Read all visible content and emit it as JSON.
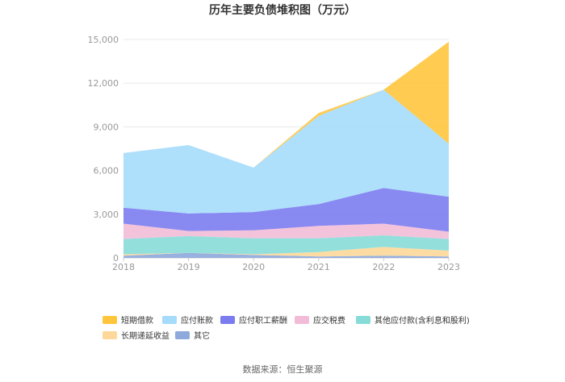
{
  "chart_data": {
    "type": "area",
    "stacked": true,
    "title": "历年主要负债堆积图（万元）",
    "x": [
      "2018",
      "2019",
      "2020",
      "2021",
      "2022",
      "2023"
    ],
    "y_ticks": [
      "0",
      "3,000",
      "6,000",
      "9,000",
      "12,000",
      "15,000"
    ],
    "ylim": [
      0,
      15000
    ],
    "grid": true,
    "legend_position": "bottom",
    "series": [
      {
        "name": "短期借款",
        "color": "#ffc53d",
        "values": [
          0,
          0,
          0,
          200,
          0,
          7000
        ]
      },
      {
        "name": "应付账款",
        "color": "#a5dcfb",
        "values": [
          3750,
          4700,
          3050,
          6050,
          6750,
          3650
        ]
      },
      {
        "name": "应付职工薪酬",
        "color": "#7b7cf0",
        "values": [
          1100,
          1200,
          1250,
          1500,
          2450,
          2400
        ]
      },
      {
        "name": "应交税费",
        "color": "#f2bcd8",
        "values": [
          1050,
          350,
          550,
          850,
          800,
          500
        ]
      },
      {
        "name": "其他应付款(含利息和股利)",
        "color": "#87dcd8",
        "values": [
          1050,
          1150,
          1100,
          950,
          800,
          800
        ]
      },
      {
        "name": "长期递延收益",
        "color": "#fdd89a",
        "values": [
          100,
          0,
          50,
          300,
          600,
          400
        ]
      },
      {
        "name": "其它",
        "color": "#8ea9dc",
        "values": [
          150,
          350,
          200,
          100,
          150,
          100
        ]
      }
    ]
  },
  "source_text": "数据来源：恒生聚源"
}
